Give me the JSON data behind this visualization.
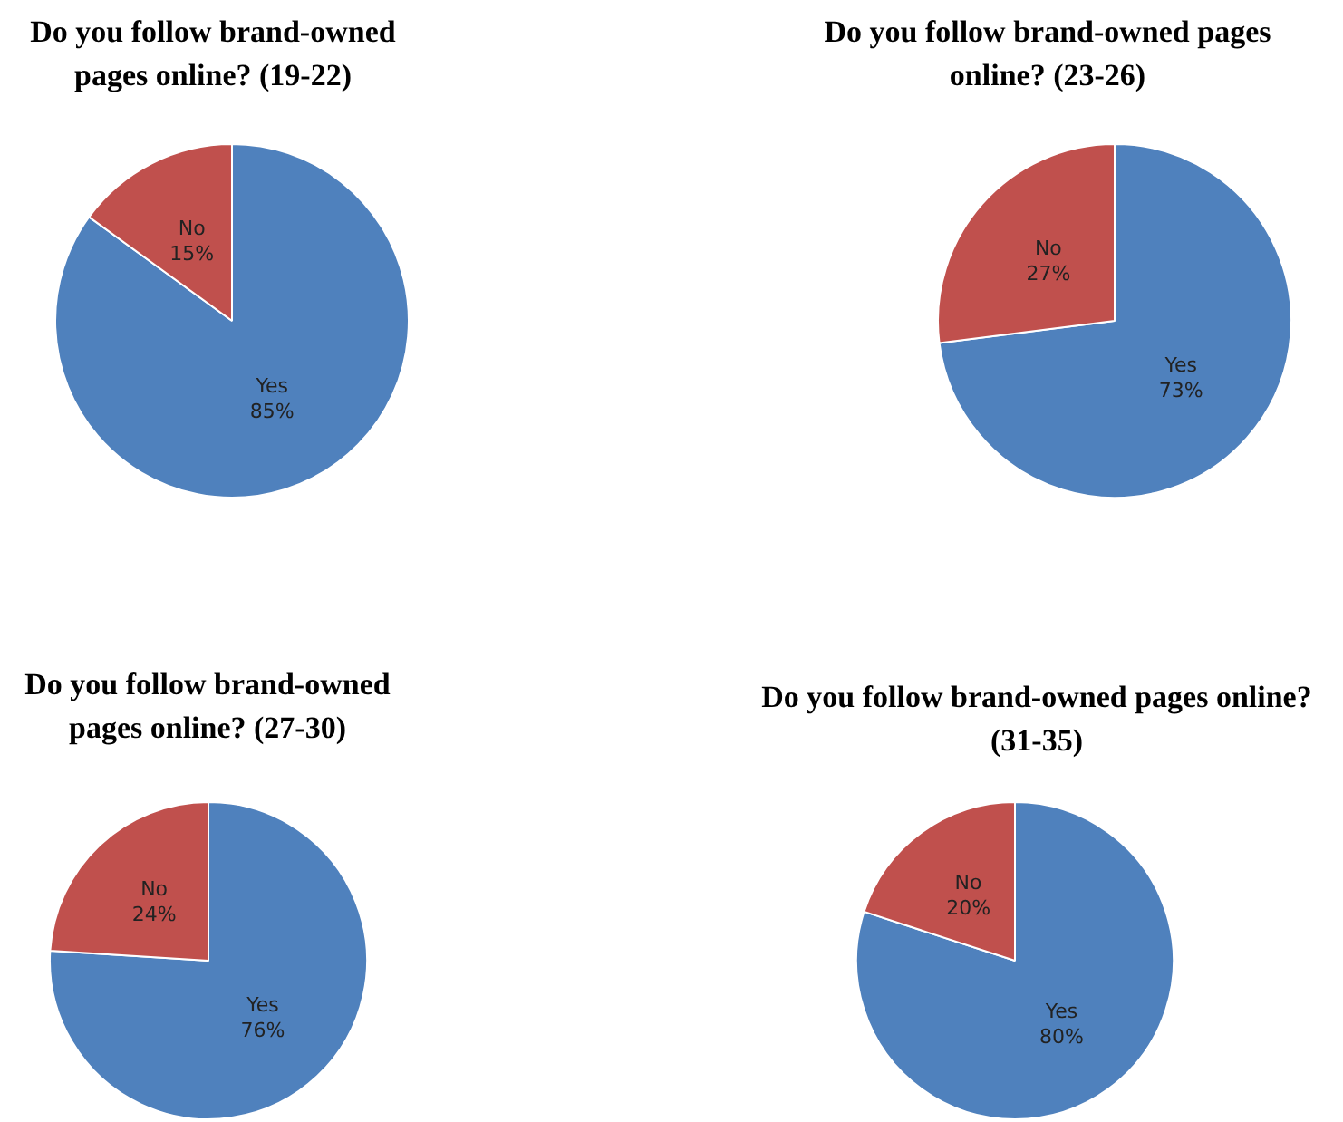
{
  "chart_data": [
    {
      "type": "pie",
      "title": "Do you follow brand-owned pages online? (19-22)",
      "categories": [
        "Yes",
        "No"
      ],
      "values": [
        85,
        15
      ],
      "colors": [
        "#4f81bd",
        "#c0504d"
      ],
      "value_labels": [
        "85%",
        "15%"
      ]
    },
    {
      "type": "pie",
      "title": "Do you follow brand-owned pages online? (23-26)",
      "categories": [
        "Yes",
        "No"
      ],
      "values": [
        73,
        27
      ],
      "colors": [
        "#4f81bd",
        "#c0504d"
      ],
      "value_labels": [
        "73%",
        "27%"
      ]
    },
    {
      "type": "pie",
      "title": "Do you follow brand-owned pages online? (27-30)",
      "categories": [
        "Yes",
        "No"
      ],
      "values": [
        76,
        24
      ],
      "colors": [
        "#4f81bd",
        "#c0504d"
      ],
      "value_labels": [
        "76%",
        "24%"
      ]
    },
    {
      "type": "pie",
      "title": "Do you follow brand-owned pages online? (31-35)",
      "categories": [
        "Yes",
        "No"
      ],
      "values": [
        80,
        20
      ],
      "colors": [
        "#4f81bd",
        "#c0504d"
      ],
      "value_labels": [
        "80%",
        "20%"
      ]
    }
  ]
}
